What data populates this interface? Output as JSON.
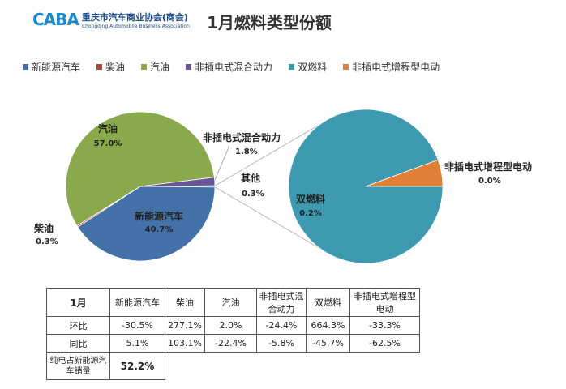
{
  "header": {
    "logo_mark": "CABA",
    "logo_cn": "重庆市汽车商业协会(商会)",
    "logo_en": "Chongqing Automobile Business Association",
    "title": "1月燃料类型份额"
  },
  "colors": {
    "nev": "#4472a8",
    "diesel": "#b0463a",
    "gasoline": "#8aa94c",
    "phev": "#6c549a",
    "dual": "#3e9ab0",
    "erev": "#e07f35"
  },
  "chart_data": {
    "type": "pie",
    "legend_position": "top",
    "legend": [
      "新能源汽车",
      "柴油",
      "汽油",
      "非插电式混合动力",
      "双燃料",
      "非插电式增程型电动"
    ],
    "main_pie": {
      "slices": [
        {
          "name": "汽油",
          "value": 57.0,
          "label": "57.0%"
        },
        {
          "name": "非插电式混合动力",
          "value": 1.8,
          "label": "1.8%"
        },
        {
          "name": "其他",
          "value": 0.3,
          "label": "0.3%"
        },
        {
          "name": "新能源汽车",
          "value": 40.7,
          "label": "40.7%"
        },
        {
          "name": "柴油",
          "value": 0.3,
          "label": "0.3%"
        }
      ]
    },
    "sub_pie": {
      "slices": [
        {
          "name": "非插电式增程型电动",
          "value": 0.0,
          "label": "0.0%"
        },
        {
          "name": "双燃料",
          "value": 0.2,
          "label": "0.2%"
        }
      ]
    }
  },
  "table": {
    "header": [
      "1月",
      "新能源汽车",
      "柴油",
      "汽油",
      "非插电式混合动力",
      "双燃料",
      "非插电式增程型电动"
    ],
    "rows": [
      {
        "label": "环比",
        "values": [
          "-30.5%",
          "277.1%",
          "2.0%",
          "-24.4%",
          "664.3%",
          "-33.3%"
        ]
      },
      {
        "label": "同比",
        "values": [
          "5.1%",
          "103.1%",
          "-22.4%",
          "-5.8%",
          "-45.7%",
          "-62.5%"
        ]
      }
    ],
    "footer": {
      "label": "纯电占新能源汽车销量",
      "value": "52.2%"
    }
  }
}
